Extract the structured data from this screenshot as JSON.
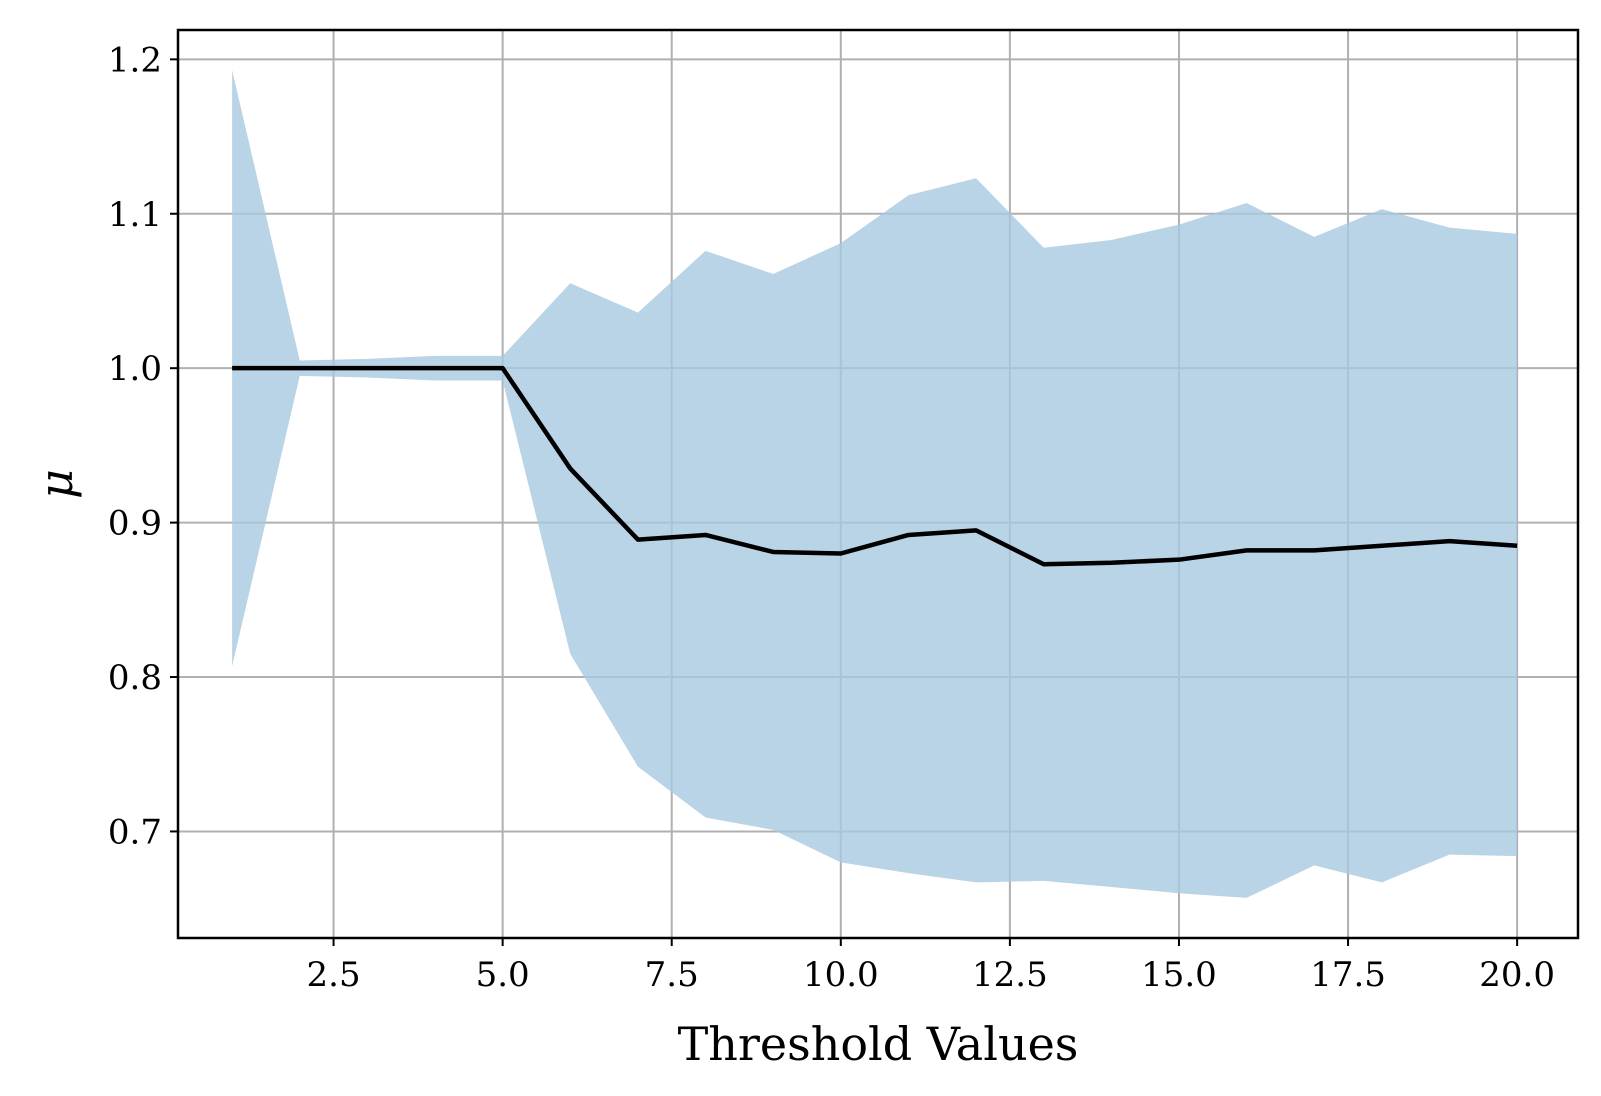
{
  "chart_data": {
    "type": "line",
    "title": "",
    "xlabel": "Threshold Values",
    "ylabel": "μ",
    "xlim": [
      0.2,
      20.9
    ],
    "ylim": [
      0.631,
      1.219
    ],
    "xticks": [
      2.5,
      5.0,
      7.5,
      10.0,
      12.5,
      15.0,
      17.5,
      20.0
    ],
    "xtick_labels": [
      "2.5",
      "5.0",
      "7.5",
      "10.0",
      "12.5",
      "15.0",
      "17.5",
      "20.0"
    ],
    "yticks": [
      0.7,
      0.8,
      0.9,
      1.0,
      1.1,
      1.2
    ],
    "ytick_labels": [
      "0.7",
      "0.8",
      "0.9",
      "1.0",
      "1.1",
      "1.2"
    ],
    "grid": true,
    "x": [
      1,
      2,
      3,
      4,
      5,
      6,
      7,
      8,
      9,
      10,
      11,
      12,
      13,
      14,
      15,
      16,
      17,
      18,
      19,
      20
    ],
    "series": [
      {
        "values": [
          1.0,
          1.0,
          1.0,
          1.0,
          1.0,
          0.935,
          0.889,
          0.892,
          0.881,
          0.88,
          0.892,
          0.895,
          0.873,
          0.874,
          0.876,
          0.882,
          0.882,
          0.885,
          0.888,
          0.885
        ],
        "color": "#000000"
      }
    ],
    "band": {
      "upper": [
        1.193,
        1.005,
        1.006,
        1.008,
        1.008,
        1.055,
        1.036,
        1.076,
        1.061,
        1.081,
        1.112,
        1.123,
        1.078,
        1.083,
        1.093,
        1.107,
        1.085,
        1.103,
        1.091,
        1.087
      ],
      "lower": [
        0.807,
        0.995,
        0.994,
        0.992,
        0.992,
        0.815,
        0.742,
        0.709,
        0.701,
        0.68,
        0.673,
        0.667,
        0.668,
        0.664,
        0.66,
        0.657,
        0.678,
        0.667,
        0.685,
        0.684
      ],
      "color": "#a8c8e1"
    },
    "colors": {
      "grid": "#b0b0b0",
      "axis": "#000000"
    }
  }
}
